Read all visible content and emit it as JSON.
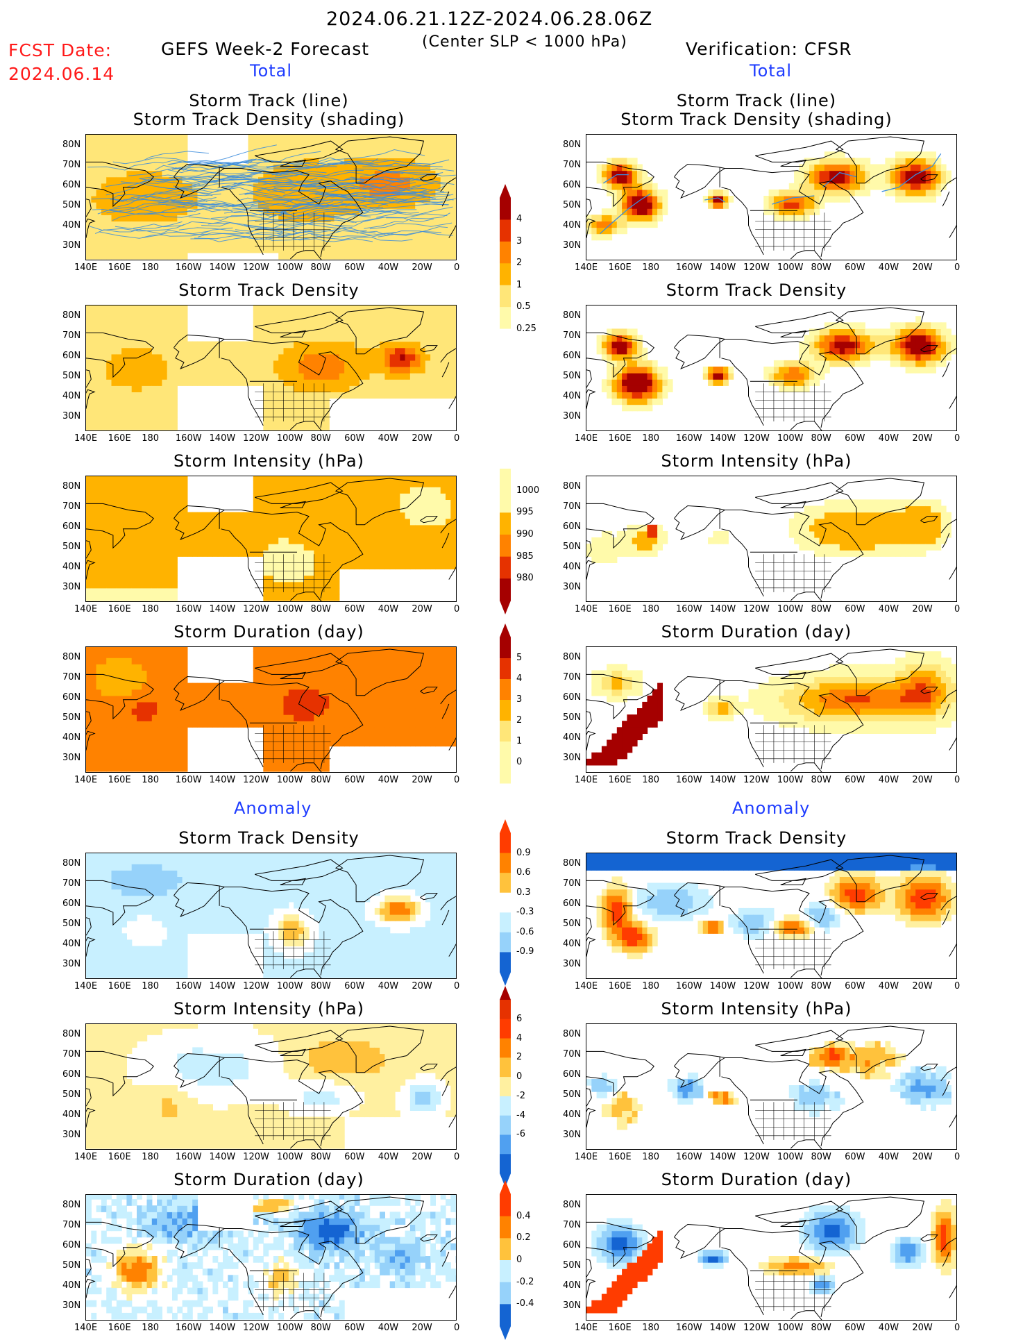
{
  "header": {
    "date_range": "2024.06.21.12Z-2024.06.28.06Z",
    "criteria": "(Center SLP < 1000 hPa)",
    "fcst_date_label": "FCST Date:",
    "fcst_date": "2024.06.14",
    "left_title": "GEFS Week-2 Forecast",
    "right_title": "Verification: CFSR"
  },
  "sections": {
    "total": "Total",
    "anomaly": "Anomaly"
  },
  "axes": {
    "lon_ticks": [
      "140E",
      "160E",
      "180",
      "160W",
      "140W",
      "120W",
      "100W",
      "80W",
      "60W",
      "40W",
      "20W",
      "0"
    ],
    "lat_ticks": [
      "80N",
      "70N",
      "60N",
      "50N",
      "40N",
      "30N"
    ]
  },
  "panel_titles": {
    "track_line": "Storm Track (line)",
    "track_shading": "Storm Track Density (shading)",
    "density": "Storm Track Density",
    "intensity": "Storm Intensity (hPa)",
    "duration": "Storm Duration (day)"
  },
  "colorbars": {
    "density_total": [
      "4",
      "3",
      "2",
      "1",
      "0.5",
      "0.25"
    ],
    "intensity_total": [
      "1000",
      "995",
      "990",
      "985",
      "980"
    ],
    "duration_total": [
      "5",
      "4",
      "3",
      "2",
      "1",
      "0"
    ],
    "density_anom": [
      "0.9",
      "0.6",
      "0.3",
      "-0.3",
      "-0.6",
      "-0.9"
    ],
    "intensity_anom": [
      "6",
      "4",
      "2",
      "0",
      "-2",
      "-4",
      "-6"
    ],
    "duration_anom": [
      "0.4",
      "0.2",
      "0",
      "-0.2",
      "-0.4"
    ]
  },
  "colors": {
    "seq": [
      "#fffaaa",
      "#ffe678",
      "#ffb300",
      "#ff8200",
      "#e63200",
      "#a50000"
    ],
    "div_pos": [
      "#fff0a0",
      "#ffc23c",
      "#ff8200",
      "#ff3c00"
    ],
    "div_neg": [
      "#c8f0ff",
      "#96d2fa",
      "#50a0f0",
      "#1464d2"
    ],
    "track_line": "#3c8cdc"
  }
}
